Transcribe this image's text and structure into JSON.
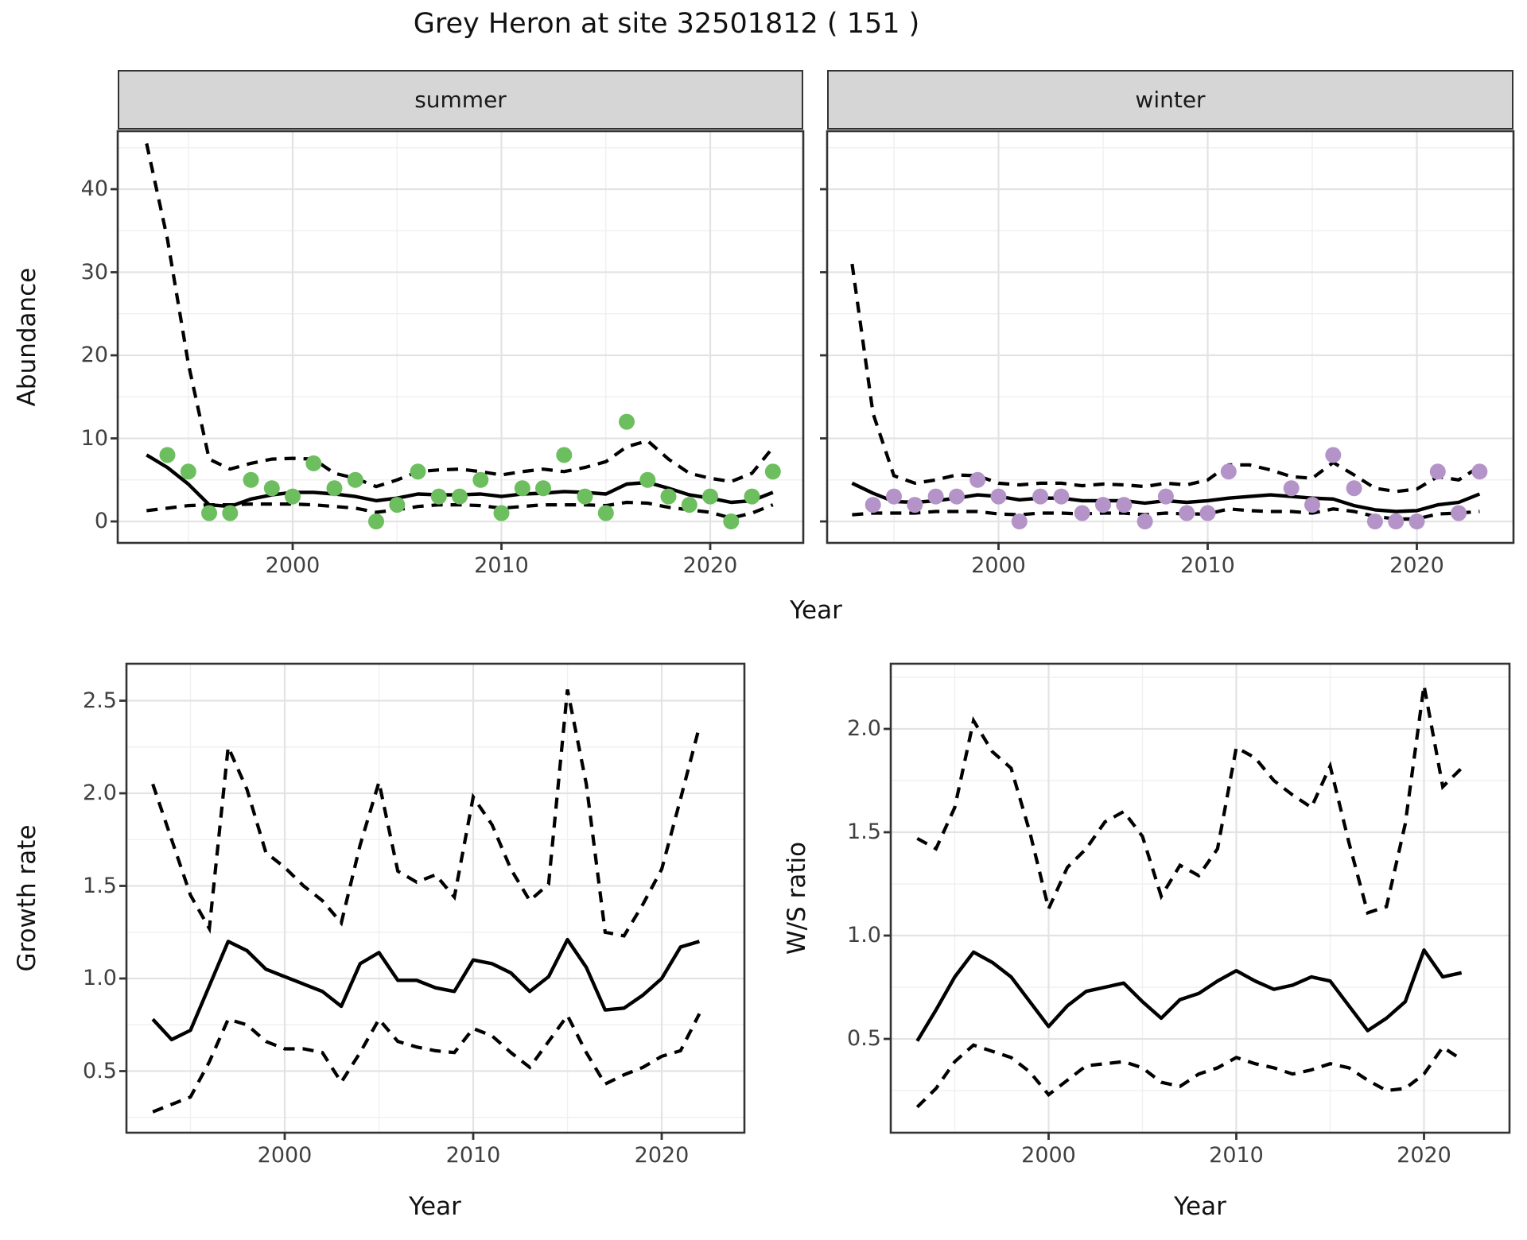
{
  "title": "Grey Heron at site 32501812 ( 151 )",
  "chart_data": {
    "type": "line",
    "title": "Grey Heron at site 32501812 ( 151 )",
    "legend": "none",
    "grid": "on",
    "line_styles": {
      "median": "solid",
      "confidence_interval": "dashed"
    },
    "colors": {
      "line": "#000000",
      "summer_points": "#6cbe5e",
      "winter_points": "#b494c8",
      "strip_bg": "#d6d6d6",
      "major_grid": "#e3e3e3",
      "minor_grid": "#f0f0f0"
    },
    "panels": [
      {
        "id": "abundance-summer",
        "strip": "summer",
        "xlabel": "Year",
        "ylabel": "Abundance",
        "xlim": [
          1991.6,
          2024.5
        ],
        "ylim": [
          -2.6,
          47
        ],
        "xtick_values": [
          2000,
          2010,
          2020
        ],
        "xtick_labels": [
          "2000",
          "2010",
          "2020"
        ],
        "xminor": [
          1995,
          2005,
          2015
        ],
        "ytick_values": [
          0,
          10,
          20,
          30,
          40
        ],
        "ytick_labels": [
          "0",
          "10",
          "20",
          "30",
          "40"
        ],
        "yminor": [
          5,
          15,
          25,
          35,
          45
        ],
        "show_ylabels": true,
        "point_color": "#6cbe5e",
        "years": [
          1993,
          1994,
          1995,
          1996,
          1997,
          1998,
          1999,
          2000,
          2001,
          2002,
          2003,
          2004,
          2005,
          2006,
          2007,
          2008,
          2009,
          2010,
          2011,
          2012,
          2013,
          2014,
          2015,
          2016,
          2017,
          2018,
          2019,
          2020,
          2021,
          2022,
          2023
        ],
        "median": [
          8.0,
          6.5,
          4.5,
          2.0,
          1.8,
          2.7,
          3.2,
          3.5,
          3.5,
          3.3,
          3.0,
          2.5,
          2.8,
          3.3,
          3.2,
          3.2,
          3.3,
          3.0,
          3.3,
          3.4,
          3.6,
          3.5,
          3.3,
          4.5,
          4.7,
          4.0,
          3.2,
          2.8,
          2.3,
          2.5,
          3.5
        ],
        "upper": [
          45.5,
          34,
          19,
          7.5,
          6.3,
          7.0,
          7.5,
          7.6,
          7.5,
          5.8,
          5.2,
          4.2,
          5.0,
          6.0,
          6.2,
          6.3,
          6.0,
          5.6,
          6.0,
          6.3,
          6.0,
          6.5,
          7.2,
          9.0,
          9.7,
          7.5,
          5.8,
          5.2,
          4.8,
          5.8,
          8.9
        ],
        "lower": [
          1.3,
          1.6,
          1.9,
          2.0,
          2.0,
          2.1,
          2.1,
          2.1,
          2.0,
          1.8,
          1.6,
          1.1,
          1.4,
          1.8,
          2.0,
          2.0,
          1.9,
          1.6,
          1.8,
          2.0,
          2.0,
          2.0,
          1.9,
          2.3,
          2.2,
          1.7,
          1.4,
          1.1,
          0.4,
          1.0,
          2.0
        ],
        "obs": [
          [
            1994,
            8
          ],
          [
            1995,
            6
          ],
          [
            1996,
            1
          ],
          [
            1997,
            1
          ],
          [
            1998,
            5
          ],
          [
            1999,
            4
          ],
          [
            2000,
            3
          ],
          [
            2001,
            7
          ],
          [
            2002,
            4
          ],
          [
            2003,
            5
          ],
          [
            2004,
            0
          ],
          [
            2005,
            2
          ],
          [
            2006,
            6
          ],
          [
            2007,
            3
          ],
          [
            2008,
            3
          ],
          [
            2009,
            5
          ],
          [
            2010,
            1
          ],
          [
            2011,
            4
          ],
          [
            2012,
            4
          ],
          [
            2013,
            8
          ],
          [
            2014,
            3
          ],
          [
            2015,
            1
          ],
          [
            2016,
            12
          ],
          [
            2017,
            5
          ],
          [
            2018,
            3
          ],
          [
            2019,
            2
          ],
          [
            2020,
            3
          ],
          [
            2021,
            0
          ],
          [
            2022,
            3
          ],
          [
            2023,
            6
          ]
        ]
      },
      {
        "id": "abundance-winter",
        "strip": "winter",
        "xlabel": "Year",
        "ylabel": "Abundance",
        "xlim": [
          1991.8,
          2024.7
        ],
        "ylim": [
          -2.6,
          47
        ],
        "xtick_values": [
          2000,
          2010,
          2020
        ],
        "xtick_labels": [
          "2000",
          "2010",
          "2020"
        ],
        "xminor": [
          1995,
          2005,
          2015
        ],
        "ytick_values": [
          0,
          10,
          20,
          30,
          40
        ],
        "ytick_labels": [
          "0",
          "10",
          "20",
          "30",
          "40"
        ],
        "yminor": [
          5,
          15,
          25,
          35,
          45
        ],
        "show_ylabels": false,
        "point_color": "#b494c8",
        "years": [
          1993,
          1994,
          1995,
          1996,
          1997,
          1998,
          1999,
          2000,
          2001,
          2002,
          2003,
          2004,
          2005,
          2006,
          2007,
          2008,
          2009,
          2010,
          2011,
          2012,
          2013,
          2014,
          2015,
          2016,
          2017,
          2018,
          2019,
          2020,
          2021,
          2022,
          2023
        ],
        "median": [
          4.6,
          3.4,
          2.4,
          2.3,
          2.5,
          2.8,
          3.2,
          3.0,
          2.6,
          2.8,
          2.8,
          2.5,
          2.5,
          2.5,
          2.2,
          2.5,
          2.3,
          2.5,
          2.8,
          3.0,
          3.2,
          3.0,
          2.8,
          2.7,
          1.9,
          1.4,
          1.2,
          1.3,
          2.0,
          2.3,
          3.3
        ],
        "upper": [
          31,
          13,
          5.5,
          4.6,
          5.0,
          5.6,
          5.5,
          4.6,
          4.4,
          4.6,
          4.6,
          4.3,
          4.5,
          4.4,
          4.2,
          4.6,
          4.4,
          5.0,
          6.8,
          6.8,
          6.2,
          5.4,
          5.2,
          7.1,
          5.6,
          4.0,
          3.6,
          3.9,
          5.4,
          5.0,
          6.6
        ],
        "lower": [
          0.8,
          1.0,
          1.0,
          1.0,
          1.2,
          1.2,
          1.2,
          0.9,
          0.8,
          1.0,
          1.0,
          0.9,
          1.0,
          1.0,
          0.8,
          1.0,
          0.9,
          0.9,
          1.5,
          1.3,
          1.2,
          1.2,
          1.0,
          1.5,
          1.2,
          0.6,
          0.3,
          0.3,
          0.9,
          1.0,
          1.2
        ],
        "obs": [
          [
            1994,
            2
          ],
          [
            1995,
            3
          ],
          [
            1996,
            2
          ],
          [
            1997,
            3
          ],
          [
            1998,
            3
          ],
          [
            1999,
            5
          ],
          [
            2000,
            3
          ],
          [
            2001,
            0
          ],
          [
            2002,
            3
          ],
          [
            2003,
            3
          ],
          [
            2004,
            1
          ],
          [
            2005,
            2
          ],
          [
            2006,
            2
          ],
          [
            2007,
            0
          ],
          [
            2008,
            3
          ],
          [
            2009,
            1
          ],
          [
            2010,
            1
          ],
          [
            2011,
            6
          ],
          [
            2014,
            4
          ],
          [
            2015,
            2
          ],
          [
            2016,
            8
          ],
          [
            2017,
            4
          ],
          [
            2018,
            0
          ],
          [
            2019,
            0
          ],
          [
            2020,
            0
          ],
          [
            2021,
            6
          ],
          [
            2022,
            1
          ],
          [
            2023,
            6
          ]
        ]
      },
      {
        "id": "growth-rate",
        "strip": null,
        "xlabel": "Year",
        "ylabel": "Growth rate",
        "xlim": [
          1991.6,
          2024.4
        ],
        "ylim": [
          0.17,
          2.7
        ],
        "xtick_values": [
          2000,
          2010,
          2020
        ],
        "xtick_labels": [
          "2000",
          "2010",
          "2020"
        ],
        "xminor": [
          1995,
          2005,
          2015
        ],
        "ytick_values": [
          0.5,
          1.0,
          1.5,
          2.0,
          2.5
        ],
        "ytick_labels": [
          "0.5",
          "1.0",
          "1.5",
          "2.0",
          "2.5"
        ],
        "yminor": [
          0.25,
          0.75,
          1.25,
          1.75,
          2.25
        ],
        "show_ylabels": true,
        "point_color": null,
        "years": [
          1993,
          1994,
          1995,
          1996,
          1997,
          1998,
          1999,
          2000,
          2001,
          2002,
          2003,
          2004,
          2005,
          2006,
          2007,
          2008,
          2009,
          2010,
          2011,
          2012,
          2013,
          2014,
          2015,
          2016,
          2017,
          2018,
          2019,
          2020,
          2021,
          2022
        ],
        "median": [
          0.78,
          0.67,
          0.72,
          0.96,
          1.2,
          1.15,
          1.05,
          1.01,
          0.97,
          0.93,
          0.85,
          1.08,
          1.14,
          0.99,
          0.99,
          0.95,
          0.93,
          1.1,
          1.08,
          1.03,
          0.93,
          1.01,
          1.21,
          1.06,
          0.83,
          0.84,
          0.91,
          1.0,
          1.17,
          1.2
        ],
        "upper": [
          2.05,
          1.75,
          1.45,
          1.27,
          2.25,
          2.02,
          1.68,
          1.6,
          1.5,
          1.42,
          1.3,
          1.72,
          2.06,
          1.58,
          1.52,
          1.56,
          1.44,
          1.98,
          1.83,
          1.59,
          1.42,
          1.51,
          2.56,
          2.05,
          1.25,
          1.23,
          1.4,
          1.59,
          1.97,
          2.36
        ],
        "lower": [
          0.28,
          0.32,
          0.36,
          0.55,
          0.78,
          0.75,
          0.66,
          0.62,
          0.62,
          0.6,
          0.44,
          0.6,
          0.78,
          0.66,
          0.63,
          0.61,
          0.6,
          0.73,
          0.69,
          0.6,
          0.52,
          0.66,
          0.8,
          0.6,
          0.43,
          0.48,
          0.52,
          0.58,
          0.61,
          0.81
        ],
        "obs": null
      },
      {
        "id": "ws-ratio",
        "strip": null,
        "xlabel": "Year",
        "ylabel": "W/S ratio",
        "xlim": [
          1991.6,
          2024.6
        ],
        "ylim": [
          0.05,
          2.32
        ],
        "xtick_values": [
          2000,
          2010,
          2020
        ],
        "xtick_labels": [
          "2000",
          "2010",
          "2020"
        ],
        "xminor": [
          1995,
          2005,
          2015
        ],
        "ytick_values": [
          0.5,
          1.0,
          1.5,
          2.0
        ],
        "ytick_labels": [
          "0.5",
          "1.0",
          "1.5",
          "2.0"
        ],
        "yminor": [
          0.25,
          0.75,
          1.25,
          1.75,
          2.25
        ],
        "show_ylabels": true,
        "point_color": null,
        "years": [
          1993,
          1994,
          1995,
          1996,
          1997,
          1998,
          1999,
          2000,
          2001,
          2002,
          2003,
          2004,
          2005,
          2006,
          2007,
          2008,
          2009,
          2010,
          2011,
          2012,
          2013,
          2014,
          2015,
          2016,
          2017,
          2018,
          2019,
          2020,
          2021,
          2022
        ],
        "median": [
          0.49,
          0.64,
          0.8,
          0.92,
          0.87,
          0.8,
          0.68,
          0.56,
          0.66,
          0.73,
          0.75,
          0.77,
          0.68,
          0.6,
          0.69,
          0.72,
          0.78,
          0.83,
          0.78,
          0.74,
          0.76,
          0.8,
          0.78,
          0.66,
          0.54,
          0.6,
          0.68,
          0.93,
          0.8,
          0.82
        ],
        "upper": [
          1.47,
          1.42,
          1.62,
          2.04,
          1.89,
          1.81,
          1.5,
          1.13,
          1.33,
          1.42,
          1.55,
          1.6,
          1.48,
          1.19,
          1.34,
          1.29,
          1.42,
          1.91,
          1.86,
          1.75,
          1.68,
          1.62,
          1.82,
          1.45,
          1.11,
          1.14,
          1.54,
          2.21,
          1.72,
          1.81
        ],
        "lower": [
          0.17,
          0.26,
          0.39,
          0.47,
          0.44,
          0.41,
          0.34,
          0.23,
          0.3,
          0.37,
          0.38,
          0.39,
          0.36,
          0.29,
          0.27,
          0.33,
          0.36,
          0.41,
          0.38,
          0.36,
          0.33,
          0.35,
          0.38,
          0.36,
          0.3,
          0.25,
          0.26,
          0.33,
          0.46,
          0.4
        ],
        "obs": null
      }
    ]
  }
}
